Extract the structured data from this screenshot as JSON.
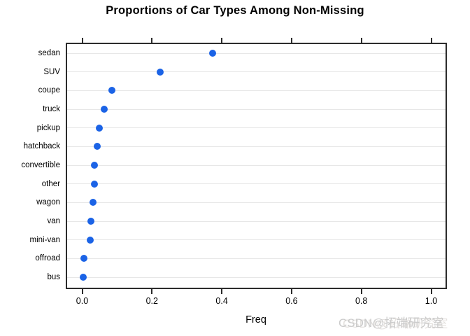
{
  "title": "Proportions of Car Types Among Non-Missing",
  "watermark": {
    "text": "CSDN@拓端研究室",
    "color": "#cbcbcb"
  },
  "colors": {
    "dot": "#1b63e6",
    "plot_border": "#2c2c2c",
    "grid_line": "#e7e7e7",
    "background": "#ffffff",
    "text": "#000000"
  },
  "chart_data": {
    "type": "scatter",
    "subtype": "horizontal-dot-plot",
    "title": "Proportions of Car Types Among Non-Missing",
    "xlabel": "Freq",
    "ylabel": "",
    "categories": [
      "sedan",
      "SUV",
      "coupe",
      "truck",
      "pickup",
      "hatchback",
      "convertible",
      "other",
      "wagon",
      "van",
      "mini-van",
      "offroad",
      "bus"
    ],
    "values": [
      0.374,
      0.223,
      0.086,
      0.063,
      0.049,
      0.043,
      0.036,
      0.035,
      0.031,
      0.025,
      0.024,
      0.005,
      0.003
    ],
    "xticks": [
      0.0,
      0.2,
      0.4,
      0.6,
      0.8,
      1.0
    ],
    "xtick_labels": [
      "0.0",
      "0.2",
      "0.4",
      "0.6",
      "0.8",
      "1.0"
    ],
    "xlim": [
      -0.047,
      1.045
    ],
    "grid": true,
    "legend": "none"
  }
}
